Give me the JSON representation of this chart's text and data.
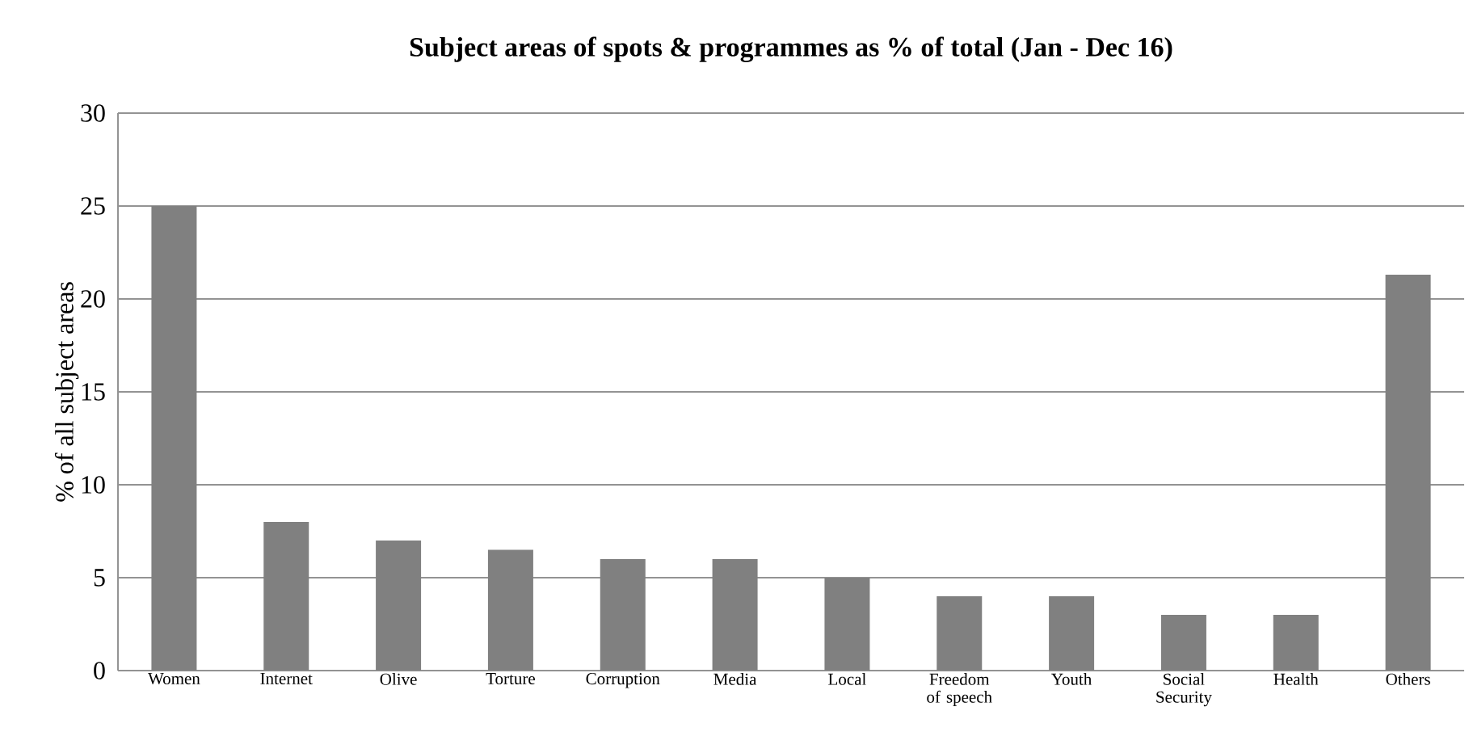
{
  "chart_data": {
    "type": "bar",
    "title": "Subject areas of spots & programmes as % of total (Jan - Dec 16)",
    "ylabel": "% of all subject areas",
    "categories": [
      "Women",
      "Internet",
      "Olive",
      "Torture",
      "Corruption",
      "Media",
      "Local",
      "Freedom of speech",
      "Youth",
      "Social Security",
      "Health",
      "Others"
    ],
    "values": [
      25,
      8,
      7,
      6.5,
      6,
      6,
      5,
      4,
      4,
      3,
      3,
      21.3
    ],
    "color": "#808080",
    "ylim": [
      0,
      30
    ],
    "yticks": [
      0,
      5,
      10,
      15,
      20,
      25,
      30
    ],
    "grid": "y"
  }
}
